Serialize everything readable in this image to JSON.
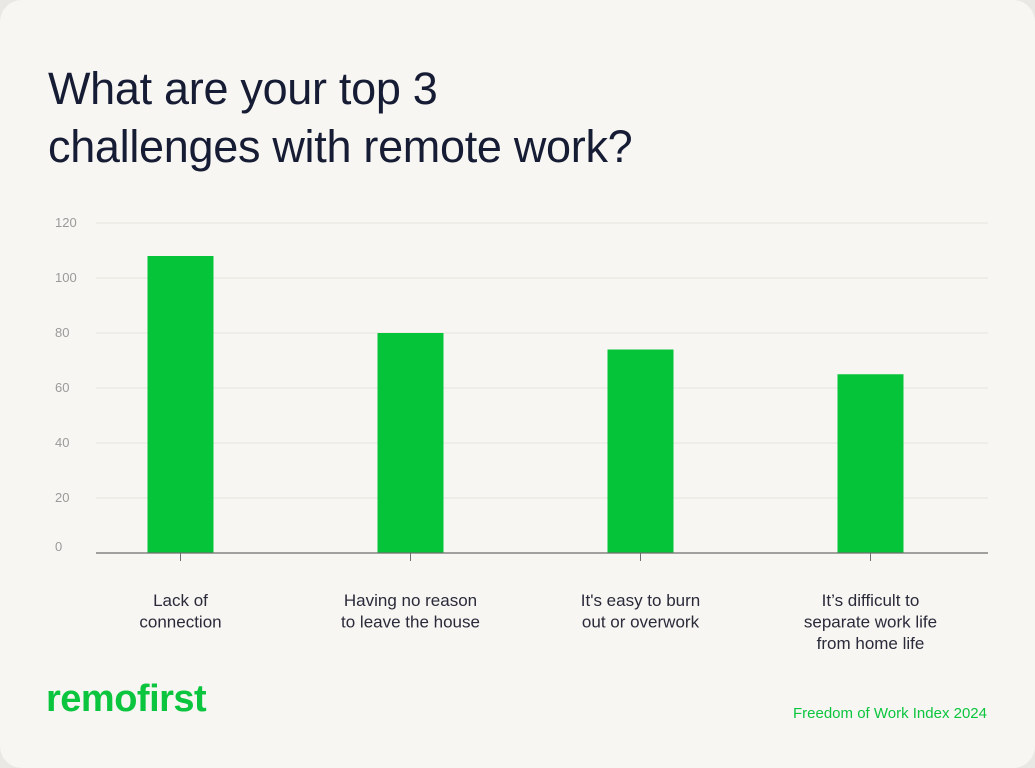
{
  "title_lines": [
    "What are your top 3",
    "challenges with remote work?"
  ],
  "brand": {
    "logo_text": "remofirst",
    "source_text": "Freedom of Work Index 2024",
    "accent_color": "#0bc53e"
  },
  "chart_data": {
    "type": "bar",
    "title": "What are your top 3 challenges with remote work?",
    "xlabel": "",
    "ylabel": "",
    "ylim": [
      0,
      120
    ],
    "yticks": [
      0,
      20,
      40,
      60,
      80,
      100,
      120
    ],
    "grid": true,
    "bar_color": "#06c43a",
    "categories": [
      [
        "Lack of",
        "connection"
      ],
      [
        "Having no reason",
        "to leave the house"
      ],
      [
        "It's easy to burn",
        "out or overwork"
      ],
      [
        "It’s difficult to",
        "separate work life",
        "from home life"
      ]
    ],
    "values": [
      108,
      80,
      74,
      65
    ]
  }
}
